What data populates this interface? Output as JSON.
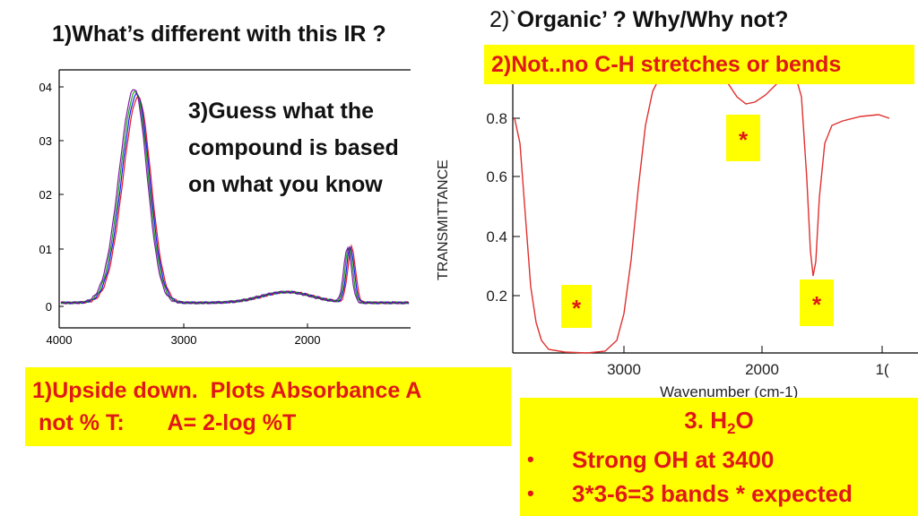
{
  "question1": "1)What’s different with this IR ?",
  "question2": {
    "prefix": "2)`",
    "bold": "Organic’ ? Why/Why not?"
  },
  "answer2": "2)Not..no C-H stretches or bends",
  "question3": [
    "3)Guess what the",
    "compound is based",
    "on what you know"
  ],
  "answer1": [
    "1)Upside down.  Plots Absorbance A",
    " not % T:       A= 2-log %T"
  ],
  "answer3": {
    "title_main": "3. H",
    "title_sub": "2",
    "title_end": "O",
    "bullets": [
      "Strong OH at 3400",
      "3*3-6=3 bands * expected"
    ],
    "bullet_symbol": "•"
  },
  "star_marker": "*",
  "left_spectrum": {
    "type": "line",
    "y_ticks": [
      "04",
      "03",
      "02",
      "01",
      "0"
    ],
    "x_ticks": [
      "4000",
      "3000",
      "2000"
    ],
    "line_colors": [
      "#e8000b",
      "#0000ff",
      "#00a000",
      "#7a00a0"
    ]
  },
  "right_spectrum": {
    "type": "line",
    "ylabel": "TRANSMITTANCE",
    "xlabel": "Wavenumber (cm-1)",
    "y_ticks": [
      "0.8",
      "0.6",
      "0.4",
      "0.2"
    ],
    "x_ticks": [
      "3000",
      "2000",
      "1("
    ],
    "line_color": "#e03030"
  }
}
